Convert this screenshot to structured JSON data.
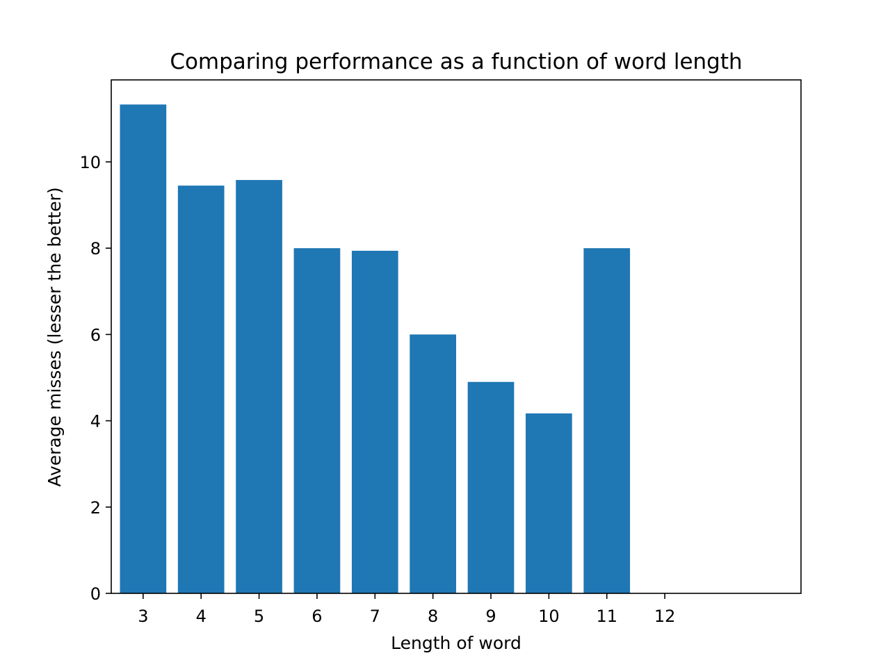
{
  "chart_data": {
    "type": "bar",
    "title": "Comparing performance as a function of word length",
    "xlabel": "Length of word",
    "ylabel": "Average misses (lesser the better)",
    "categories": [
      "3",
      "4",
      "5",
      "6",
      "7",
      "8",
      "9",
      "10",
      "11",
      "12"
    ],
    "x": [
      3,
      4,
      5,
      6,
      7,
      8,
      9,
      10,
      11,
      12
    ],
    "values": [
      11.33,
      9.45,
      9.58,
      8.0,
      7.94,
      6.0,
      4.9,
      4.17,
      8.0,
      0
    ],
    "xlim": [
      2.45,
      14.35
    ],
    "ylim": [
      0,
      11.9
    ],
    "yticks": [
      0,
      2,
      4,
      6,
      8,
      10
    ],
    "bar_color": "#1f77b4",
    "grid": false,
    "legend": "none"
  }
}
